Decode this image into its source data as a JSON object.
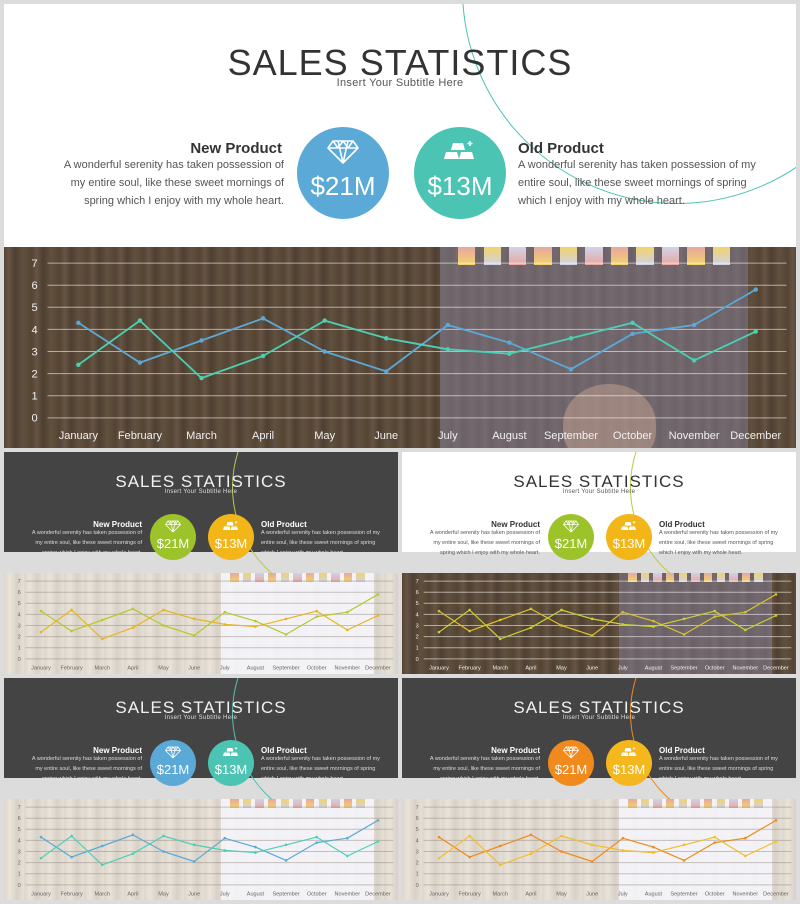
{
  "slides": [
    {
      "title": "SALES STATISTICS",
      "subtitle": "Insert Your Subtitle Here",
      "new_product": {
        "name": "New Product",
        "value": "$21M",
        "icon": "diamond-icon",
        "color": "#5ba9d6"
      },
      "old_product": {
        "name": "Old Product",
        "value": "$13M",
        "icon": "gold-bars-icon",
        "color": "#4cc4b4"
      },
      "description": "A wonderful serenity has taken possession of my entire soul, like these sweet mornings of spring which I enjoy with my whole heart.",
      "series_colors": [
        "#5ba9d6",
        "#4cd0b4"
      ],
      "arc_color": "#4cc4b4"
    },
    {
      "title": "SALES STATISTICS",
      "subtitle": "Insert Your Subtitle Here",
      "new_product": {
        "name": "New Product",
        "value": "$21M",
        "icon": "diamond-icon",
        "color": "#9cc32a"
      },
      "old_product": {
        "name": "Old Product",
        "value": "$13M",
        "icon": "gold-bars-icon",
        "color": "#f2b619"
      },
      "description": "A wonderful serenity has taken possession of my entire soul, like these sweet mornings of spring which I enjoy with my whole heart.",
      "series_colors": [
        "#b4c92b",
        "#e8b61a"
      ],
      "arc_color": "#b8c84a"
    },
    {
      "title": "SALES STATISTICS",
      "subtitle": "Insert Your Subtitle Here",
      "new_product": {
        "name": "New Product",
        "value": "$21M",
        "icon": "diamond-icon",
        "color": "#9cc32a"
      },
      "old_product": {
        "name": "Old Product",
        "value": "$13M",
        "icon": "gold-bars-icon",
        "color": "#f2b619"
      },
      "description": "A wonderful serenity has taken possession of my entire soul, like these sweet mornings of spring which I enjoy with my whole heart.",
      "series_colors": [
        "#d8c229",
        "#c6d431"
      ],
      "arc_color": "#b8c84a"
    },
    {
      "title": "SALES STATISTICS",
      "subtitle": "Insert Your Subtitle Here",
      "new_product": {
        "name": "New Product",
        "value": "$21M",
        "icon": "diamond-icon",
        "color": "#5ba9d6"
      },
      "old_product": {
        "name": "Old Product",
        "value": "$13M",
        "icon": "gold-bars-icon",
        "color": "#4cc4b4"
      },
      "description": "A wonderful serenity has taken possession of my entire soul, like these sweet mornings of spring which I enjoy with my whole heart.",
      "series_colors": [
        "#5ba9d6",
        "#4cd0b4"
      ],
      "arc_color": "#4cc4b4"
    },
    {
      "title": "SALES STATISTICS",
      "subtitle": "Insert Your Subtitle Here",
      "new_product": {
        "name": "New Product",
        "value": "$21M",
        "icon": "diamond-icon",
        "color": "#f08a1c"
      },
      "old_product": {
        "name": "Old Product",
        "value": "$13M",
        "icon": "gold-bars-icon",
        "color": "#f4b81e"
      },
      "description": "A wonderful serenity has taken possession of my entire soul, like these sweet mornings of spring which I enjoy with my whole heart.",
      "series_colors": [
        "#ef8a1c",
        "#f4bd2a"
      ],
      "arc_color": "#f08a1c"
    }
  ],
  "chart_data": {
    "type": "line",
    "categories": [
      "January",
      "February",
      "March",
      "April",
      "May",
      "June",
      "July",
      "August",
      "September",
      "October",
      "November",
      "December"
    ],
    "series": [
      {
        "values": [
          4.3,
          2.5,
          3.5,
          4.5,
          3.0,
          2.1,
          4.2,
          3.4,
          2.2,
          3.8,
          4.2,
          5.8
        ]
      },
      {
        "values": [
          2.4,
          4.4,
          1.8,
          2.8,
          4.4,
          3.6,
          3.1,
          2.9,
          3.6,
          4.3,
          2.6,
          3.9
        ]
      }
    ],
    "ylim": [
      0,
      7
    ],
    "yticks": [
      0,
      1,
      2,
      3,
      4,
      5,
      6,
      7
    ],
    "grid": true
  }
}
